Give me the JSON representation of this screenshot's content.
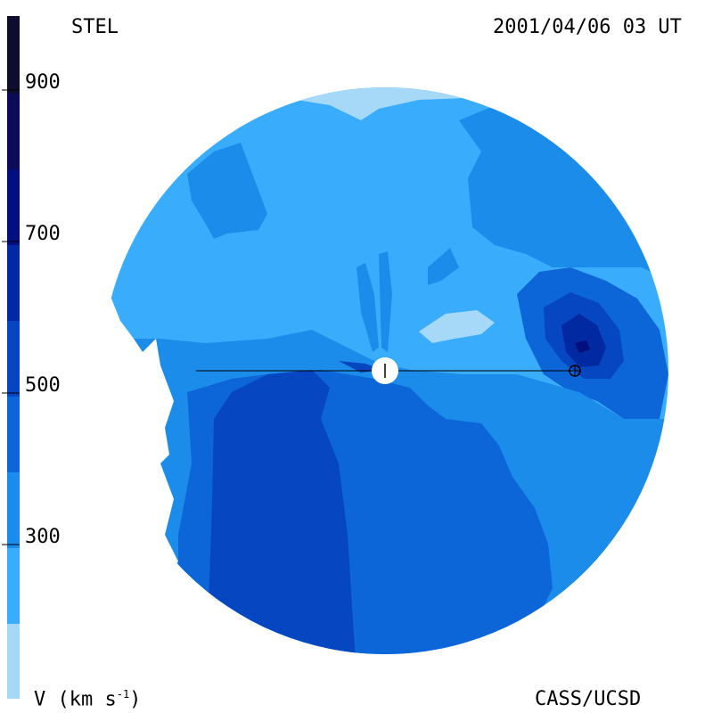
{
  "header": {
    "source": "STEL",
    "timestamp": "2001/04/06 03 UT"
  },
  "footer": {
    "credit": "CASS/UCSD"
  },
  "colorbar": {
    "quantity_label": "V (km s",
    "quantity_label_exp": "-1",
    "quantity_label_close": ")",
    "ticks": [
      "900",
      "700",
      "500",
      "300"
    ],
    "bands": [
      "#a6d8f8",
      "#39adfb",
      "#1c8cea",
      "#0d66d8",
      "#0646c0",
      "#0129a2",
      "#040f7e",
      "#0b0b57",
      "#0d0e2d"
    ]
  },
  "map": {
    "background_color": "#39adfb",
    "sun_marker": "sun",
    "earth_marker": "earth"
  }
}
